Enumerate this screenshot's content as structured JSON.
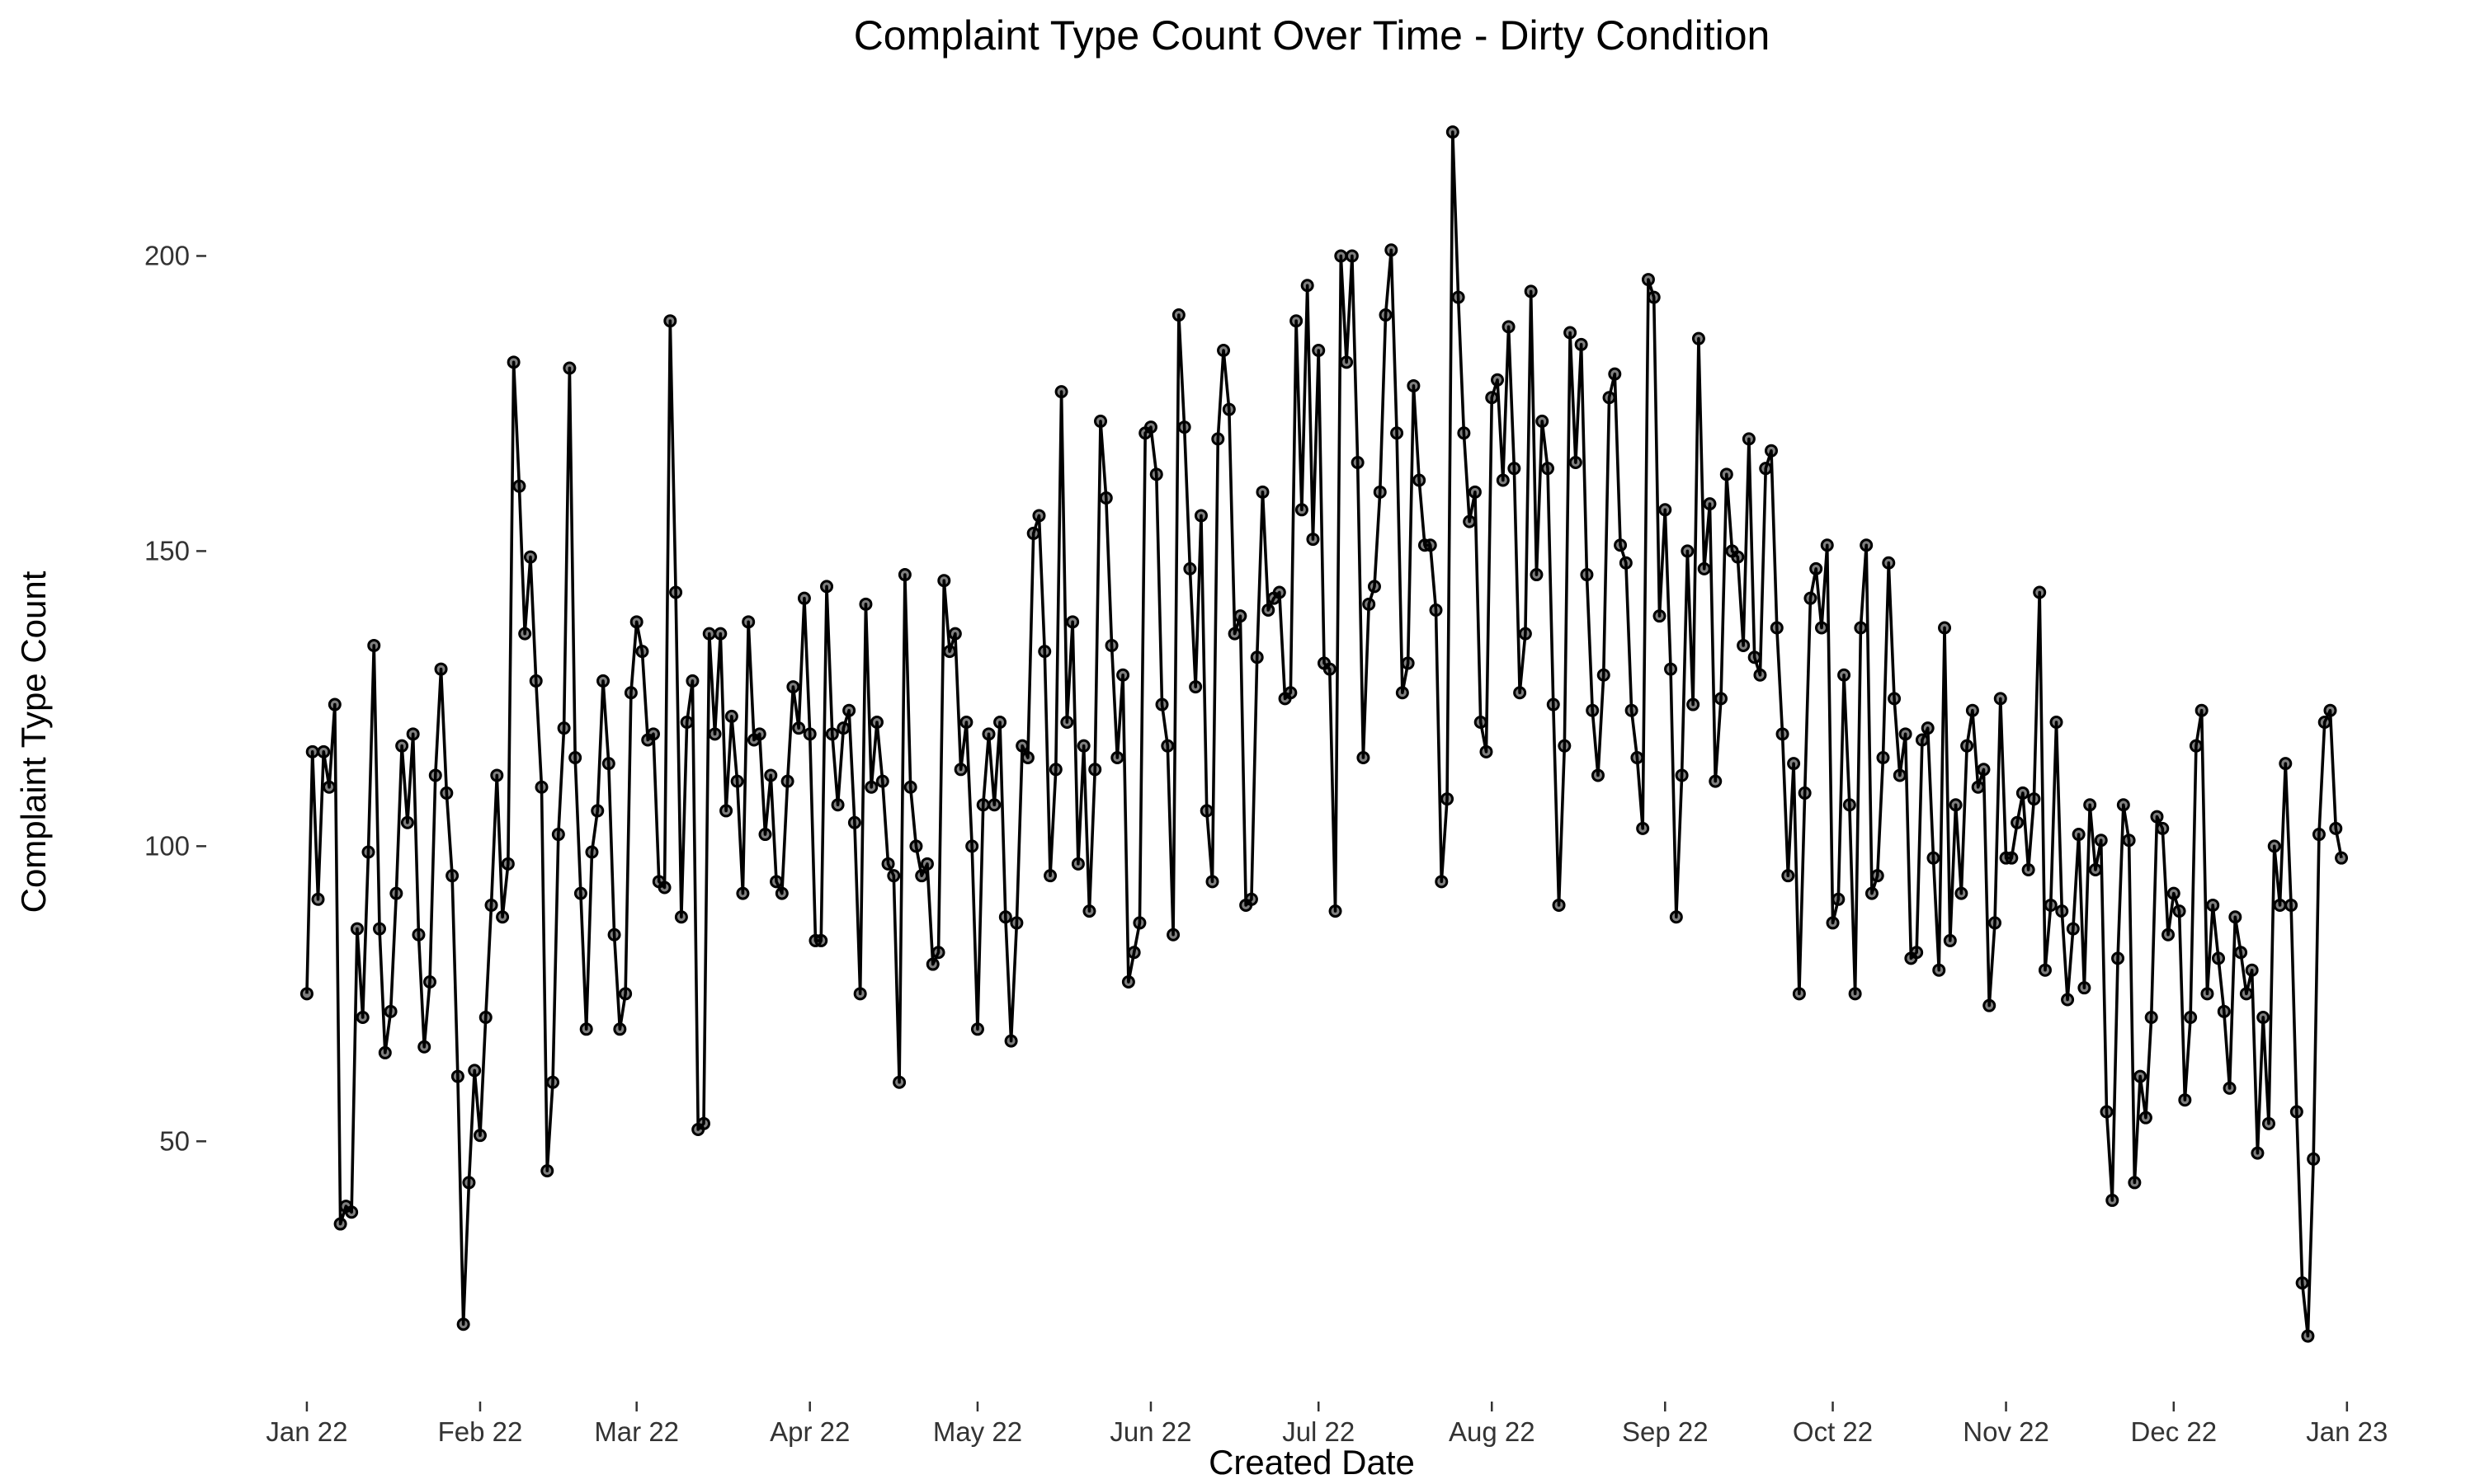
{
  "chart_data": {
    "type": "line",
    "title": "Complaint Type Count Over Time - Dirty Condition",
    "xlabel": "Created Date",
    "ylabel": "Complaint Type Count",
    "x_start": "2022-01-01",
    "x_end": "2022-12-31",
    "xlim": [
      "2021-12-14",
      "2023-01-18"
    ],
    "ylim": [
      8,
      228
    ],
    "x_ticks": [
      {
        "date": "2022-01-01",
        "label": "Jan 22"
      },
      {
        "date": "2022-02-01",
        "label": "Feb 22"
      },
      {
        "date": "2022-03-01",
        "label": "Mar 22"
      },
      {
        "date": "2022-04-01",
        "label": "Apr 22"
      },
      {
        "date": "2022-05-01",
        "label": "May 22"
      },
      {
        "date": "2022-06-01",
        "label": "Jun 22"
      },
      {
        "date": "2022-07-01",
        "label": "Jul 22"
      },
      {
        "date": "2022-08-01",
        "label": "Aug 22"
      },
      {
        "date": "2022-09-01",
        "label": "Sep 22"
      },
      {
        "date": "2022-10-01",
        "label": "Oct 22"
      },
      {
        "date": "2022-11-01",
        "label": "Nov 22"
      },
      {
        "date": "2022-12-01",
        "label": "Dec 22"
      },
      {
        "date": "2023-01-01",
        "label": "Jan 23"
      }
    ],
    "y_ticks": [
      50,
      100,
      150,
      200
    ],
    "grid": false,
    "legend": "none",
    "colors": {
      "line": "#000000",
      "point_fill": "#808080"
    },
    "values": [
      75,
      116,
      91,
      116,
      110,
      124,
      36,
      39,
      38,
      86,
      71,
      99,
      134,
      86,
      65,
      72,
      92,
      117,
      104,
      119,
      85,
      66,
      77,
      112,
      130,
      109,
      95,
      61,
      19,
      43,
      62,
      51,
      71,
      90,
      112,
      88,
      97,
      182,
      161,
      136,
      149,
      128,
      110,
      45,
      60,
      102,
      120,
      181,
      115,
      92,
      69,
      99,
      106,
      128,
      114,
      85,
      69,
      75,
      126,
      138,
      133,
      118,
      119,
      94,
      93,
      189,
      143,
      88,
      121,
      128,
      52,
      53,
      136,
      119,
      136,
      106,
      122,
      111,
      92,
      138,
      118,
      119,
      102,
      112,
      94,
      92,
      111,
      127,
      120,
      142,
      119,
      84,
      84,
      144,
      119,
      107,
      120,
      123,
      104,
      75,
      141,
      110,
      121,
      111,
      97,
      95,
      60,
      146,
      110,
      100,
      95,
      97,
      80,
      82,
      145,
      133,
      136,
      113,
      121,
      100,
      69,
      107,
      119,
      107,
      121,
      88,
      67,
      87,
      117,
      115,
      153,
      156,
      133,
      95,
      113,
      177,
      121,
      138,
      97,
      117,
      89,
      113,
      172,
      159,
      134,
      115,
      129,
      77,
      82,
      87,
      170,
      171,
      163,
      124,
      117,
      85,
      190,
      171,
      147,
      127,
      156,
      106,
      94,
      169,
      184,
      174,
      136,
      139,
      90,
      91,
      132,
      160,
      140,
      142,
      143,
      125,
      126,
      189,
      157,
      195,
      152,
      184,
      131,
      130,
      89,
      200,
      182,
      200,
      165,
      115,
      141,
      144,
      160,
      190,
      201,
      170,
      126,
      131,
      178,
      162,
      151,
      151,
      140,
      94,
      108,
      221,
      193,
      170,
      155,
      160,
      121,
      116,
      176,
      179,
      162,
      188,
      164,
      126,
      136,
      194,
      146,
      172,
      164,
      124,
      90,
      117,
      187,
      165,
      185,
      146,
      123,
      112,
      129,
      176,
      180,
      151,
      148,
      123,
      115,
      103,
      196,
      193,
      139,
      157,
      130,
      88,
      112,
      150,
      124,
      186,
      147,
      158,
      111,
      125,
      163,
      150,
      149,
      134,
      169,
      132,
      129,
      164,
      167,
      137,
      119,
      95,
      114,
      75,
      109,
      142,
      147,
      137,
      151,
      87,
      91,
      129,
      107,
      75,
      137,
      151,
      92,
      95,
      115,
      148,
      125,
      112,
      119,
      81,
      82,
      118,
      120,
      98,
      79,
      137,
      84,
      107,
      92,
      117,
      123,
      110,
      113,
      73,
      87,
      125,
      98,
      98,
      104,
      109,
      96,
      108,
      143,
      79,
      90,
      121,
      89,
      74,
      86,
      102,
      76,
      107,
      96,
      101,
      55,
      40,
      81,
      107,
      101,
      43,
      61,
      54,
      71,
      105,
      103,
      85,
      92,
      89,
      57,
      71,
      117,
      123,
      75,
      90,
      81,
      72,
      59,
      88,
      82,
      75,
      79,
      48,
      71,
      53,
      100,
      90,
      114,
      90,
      55,
      26,
      17,
      47,
      102,
      121,
      123,
      103,
      98
    ]
  }
}
